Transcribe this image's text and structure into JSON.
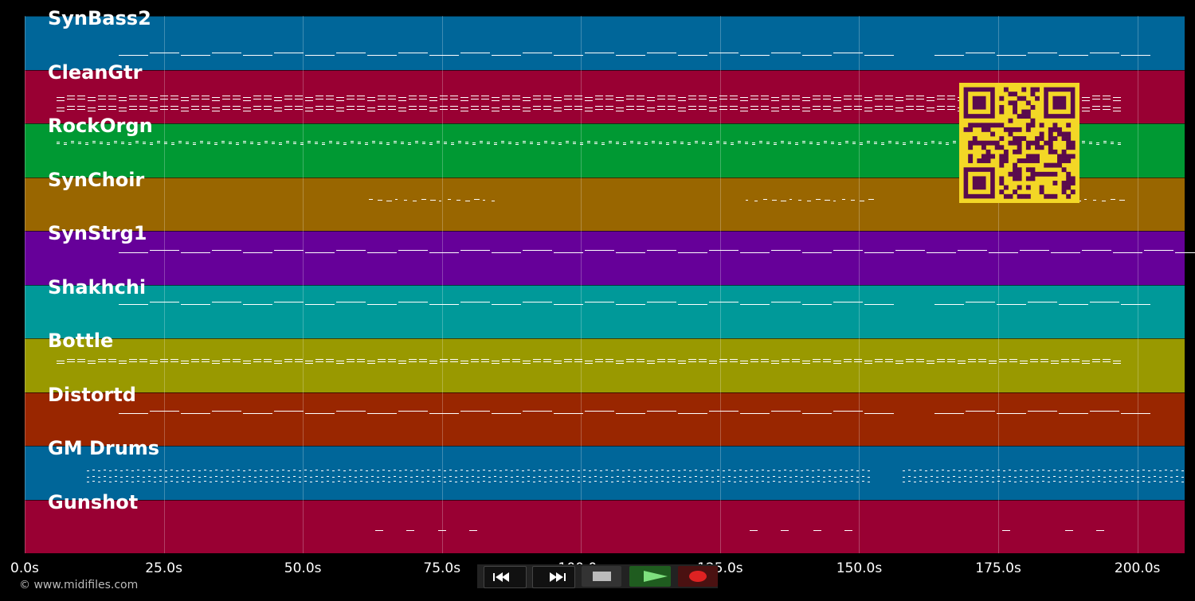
{
  "tracks": [
    {
      "name": "SynBass2",
      "color": "#006699"
    },
    {
      "name": "CleanGtr",
      "color": "#990033"
    },
    {
      "name": "RockOrgn",
      "color": "#009933"
    },
    {
      "name": "SynChoir",
      "color": "#996600"
    },
    {
      "name": "SynStrg1",
      "color": "#660099"
    },
    {
      "name": "Shakhchi",
      "color": "#009999"
    },
    {
      "name": "Bottle",
      "color": "#999900"
    },
    {
      "name": "Distortd",
      "color": "#992600"
    },
    {
      "name": "GM Drums",
      "color": "#006699"
    },
    {
      "name": "Gunshot",
      "color": "#990033"
    }
  ],
  "timeline": {
    "ticks": [
      "0.0s",
      "25.0s",
      "50.0s",
      "75.0s",
      "100.0s",
      "125.0s",
      "150.0s",
      "175.0s",
      "200.0s"
    ],
    "max_seconds": 208.5
  },
  "copyright": "© www.midifiles.com",
  "transport": {
    "rewind": "rewind-icon",
    "fast_forward": "fast-forward-icon",
    "stop": "stop-icon",
    "play": "play-icon",
    "record": "record-icon"
  },
  "colors": {
    "qr_background": "#f3d726",
    "qr_modules": "#5a0b4d"
  }
}
